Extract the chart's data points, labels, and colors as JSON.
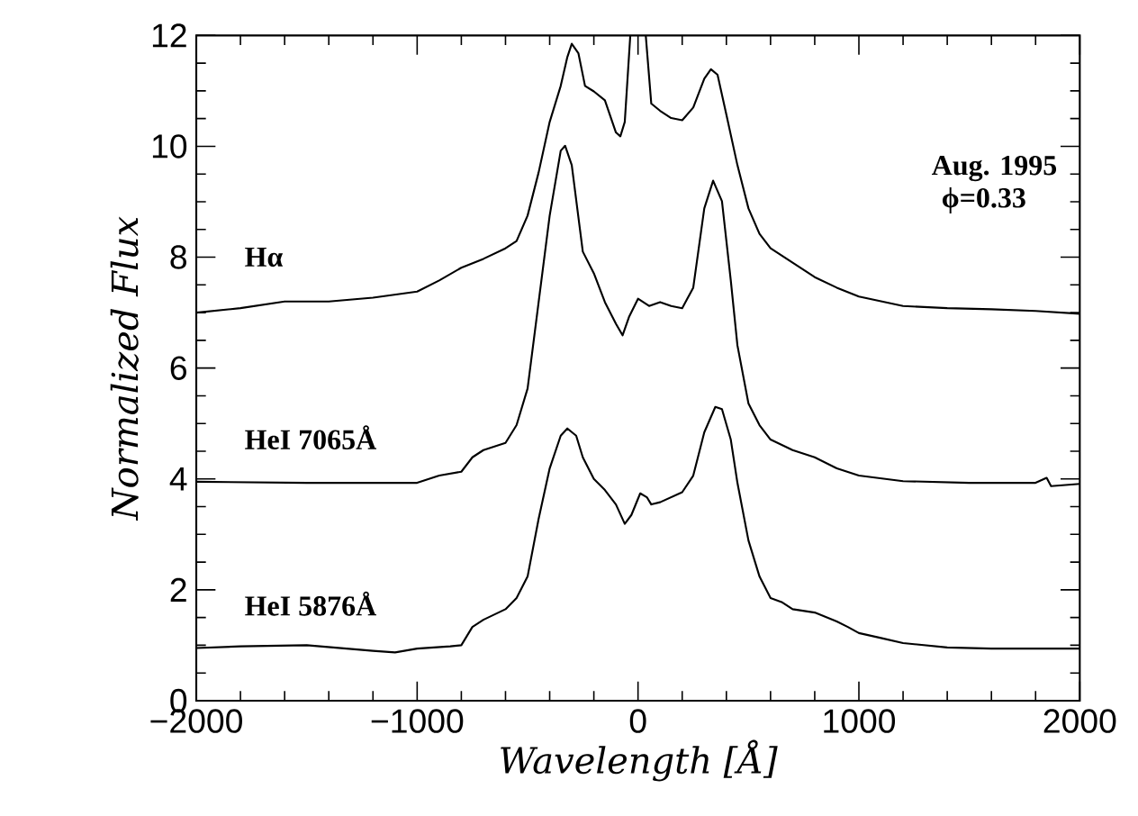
{
  "chart_data": {
    "type": "line",
    "xlabel": "Wavelength [Å]",
    "ylabel": "Normalized Flux",
    "annotations": [
      "Aug. 1995",
      "ϕ=0.33"
    ],
    "legend": "left",
    "xlim": [
      -2000,
      2000
    ],
    "ylim": [
      0,
      12
    ],
    "xticks": [
      {
        "value": -2000,
        "label": "−2000"
      },
      {
        "value": -1000,
        "label": "−1000"
      },
      0,
      1000,
      2000
    ],
    "yticks": [
      0,
      2,
      4,
      6,
      8,
      10,
      12
    ],
    "series": [
      {
        "name": "Hα",
        "color": "#000000",
        "x": [
          -2000,
          -1800,
          -1600,
          -1400,
          -1200,
          -1000,
          -900,
          -800,
          -700,
          -600,
          -550,
          -500,
          -450,
          -400,
          -350,
          -320,
          -300,
          -270,
          -240,
          -200,
          -150,
          -100,
          -80,
          -60,
          -35,
          0,
          35,
          60,
          100,
          150,
          200,
          250,
          300,
          330,
          360,
          400,
          450,
          500,
          550,
          600,
          700,
          800,
          900,
          1000,
          1200,
          1400,
          1600,
          1800,
          2000
        ],
        "values": [
          7.0,
          7.08,
          7.2,
          7.2,
          7.27,
          7.38,
          7.58,
          7.81,
          7.97,
          8.16,
          8.29,
          8.75,
          9.53,
          10.44,
          11.09,
          11.61,
          11.85,
          11.68,
          11.09,
          10.99,
          10.83,
          10.25,
          10.18,
          10.44,
          12,
          null,
          12,
          10.77,
          10.64,
          10.51,
          10.47,
          10.7,
          11.22,
          11.39,
          11.29,
          10.57,
          9.66,
          8.88,
          8.42,
          8.16,
          7.9,
          7.64,
          7.45,
          7.29,
          7.12,
          7.08,
          7.06,
          7.03,
          6.98
        ]
      },
      {
        "name": "HeI 7065Å",
        "color": "#000000",
        "x": [
          -2000,
          -1500,
          -1000,
          -900,
          -800,
          -750,
          -700,
          -600,
          -550,
          -500,
          -450,
          -400,
          -350,
          -330,
          -300,
          -250,
          -200,
          -150,
          -100,
          -70,
          -40,
          0,
          50,
          100,
          150,
          200,
          250,
          300,
          340,
          380,
          420,
          450,
          500,
          550,
          600,
          700,
          800,
          900,
          1000,
          1200,
          1500,
          1800,
          1850,
          1870,
          2000
        ],
        "values": [
          3.95,
          3.93,
          3.93,
          4.06,
          4.13,
          4.39,
          4.52,
          4.65,
          4.97,
          5.63,
          7.19,
          8.75,
          9.92,
          10.01,
          9.66,
          8.1,
          7.71,
          7.19,
          6.8,
          6.59,
          6.93,
          7.25,
          7.12,
          7.19,
          7.12,
          7.08,
          7.45,
          8.88,
          9.38,
          9.01,
          7.58,
          6.41,
          5.36,
          4.97,
          4.71,
          4.52,
          4.39,
          4.19,
          4.06,
          3.96,
          3.93,
          3.93,
          4.02,
          3.87,
          3.91
        ]
      },
      {
        "name": "HeI 5876Å",
        "color": "#000000",
        "x": [
          -2000,
          -1800,
          -1500,
          -1200,
          -1100,
          -1000,
          -850,
          -800,
          -750,
          -700,
          -600,
          -550,
          -500,
          -450,
          -400,
          -350,
          -320,
          -280,
          -250,
          -200,
          -150,
          -100,
          -60,
          -30,
          10,
          40,
          60,
          100,
          150,
          200,
          250,
          300,
          350,
          380,
          420,
          450,
          500,
          550,
          600,
          650,
          700,
          800,
          900,
          950,
          1000,
          1100,
          1200,
          1400,
          1600,
          2000
        ],
        "values": [
          0.95,
          0.98,
          1.0,
          0.9,
          0.87,
          0.94,
          0.98,
          1.0,
          1.33,
          1.46,
          1.65,
          1.85,
          2.24,
          3.28,
          4.19,
          4.78,
          4.91,
          4.78,
          4.39,
          4.0,
          3.8,
          3.54,
          3.19,
          3.35,
          3.74,
          3.67,
          3.54,
          3.58,
          3.67,
          3.76,
          4.06,
          4.84,
          5.3,
          5.26,
          4.71,
          3.93,
          2.89,
          2.24,
          1.85,
          1.78,
          1.65,
          1.59,
          1.43,
          1.33,
          1.22,
          1.13,
          1.04,
          0.96,
          0.94,
          0.94
        ]
      }
    ]
  }
}
